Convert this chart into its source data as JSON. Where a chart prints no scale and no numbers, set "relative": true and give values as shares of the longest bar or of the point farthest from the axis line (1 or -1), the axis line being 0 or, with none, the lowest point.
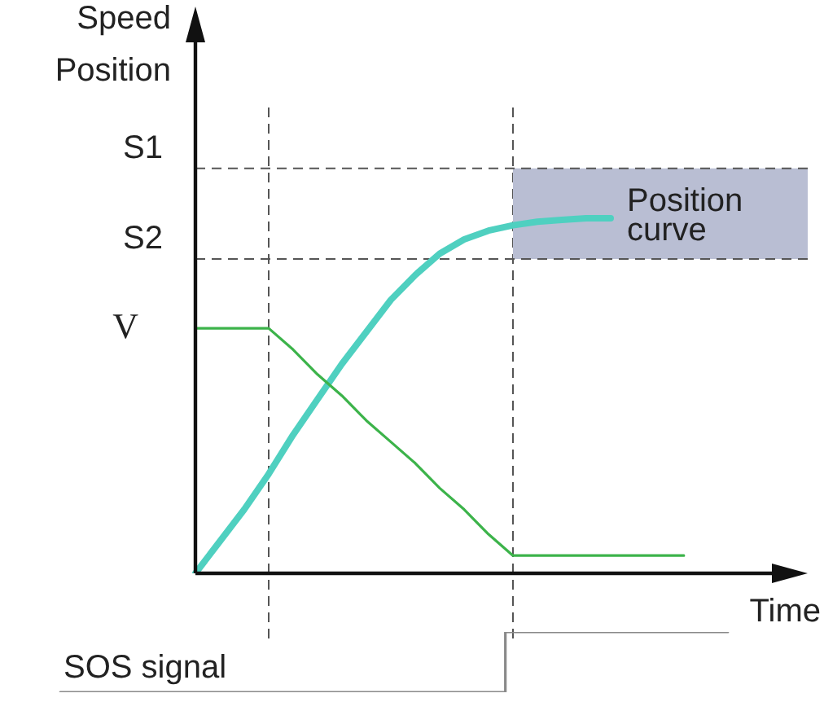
{
  "chart_data": [
    {
      "type": "line",
      "xlabel": "Time",
      "ylabel": "Speed\nPosition",
      "relative": true,
      "categories": [
        null,
        null,
        null,
        null,
        null,
        null,
        null,
        null,
        null,
        null,
        null,
        null,
        null,
        null,
        null,
        null,
        null,
        null,
        null,
        null,
        null
      ],
      "series": [
        {
          "color": "#3cb34a",
          "values": [
            0.69,
            0.69,
            0.69,
            0.69,
            0.63,
            0.56,
            0.5,
            0.43,
            0.37,
            0.31,
            0.24,
            0.18,
            0.11,
            0.05,
            0.05,
            0.05,
            0.05,
            0.05,
            0.05,
            0.05,
            0.05
          ]
        },
        {
          "name": "Position curve",
          "color": "#4fd0c0",
          "values": [
            0,
            0.09,
            0.18,
            0.28,
            0.39,
            0.49,
            0.59,
            0.68,
            0.77,
            0.84,
            0.9,
            0.94,
            0.965,
            0.98,
            0.99,
            0.995,
            1,
            1,
            null,
            null,
            null
          ]
        }
      ],
      "ref_lines": [
        {
          "axis": "y",
          "value": 1.14,
          "label": "S1",
          "color": "#555555",
          "line_style": "dashed"
        },
        {
          "axis": "y",
          "value": 0.885,
          "label": "S2",
          "color": "#555555",
          "line_style": "dashed"
        }
      ],
      "bands": [
        {
          "axis": "y",
          "from": 0.885,
          "to": 1.14,
          "color": "#b9bed3"
        }
      ],
      "annotations": [
        "V"
      ],
      "legend": false,
      "marker": "none"
    },
    {
      "type": "step",
      "relative": true,
      "categories": [
        null,
        null,
        null,
        null
      ],
      "series": [
        {
          "color": "#8a8a8a",
          "values": [
            0,
            0,
            1,
            1
          ]
        }
      ],
      "annotations": [
        "SOS signal"
      ],
      "legend": false,
      "marker": "none"
    }
  ]
}
